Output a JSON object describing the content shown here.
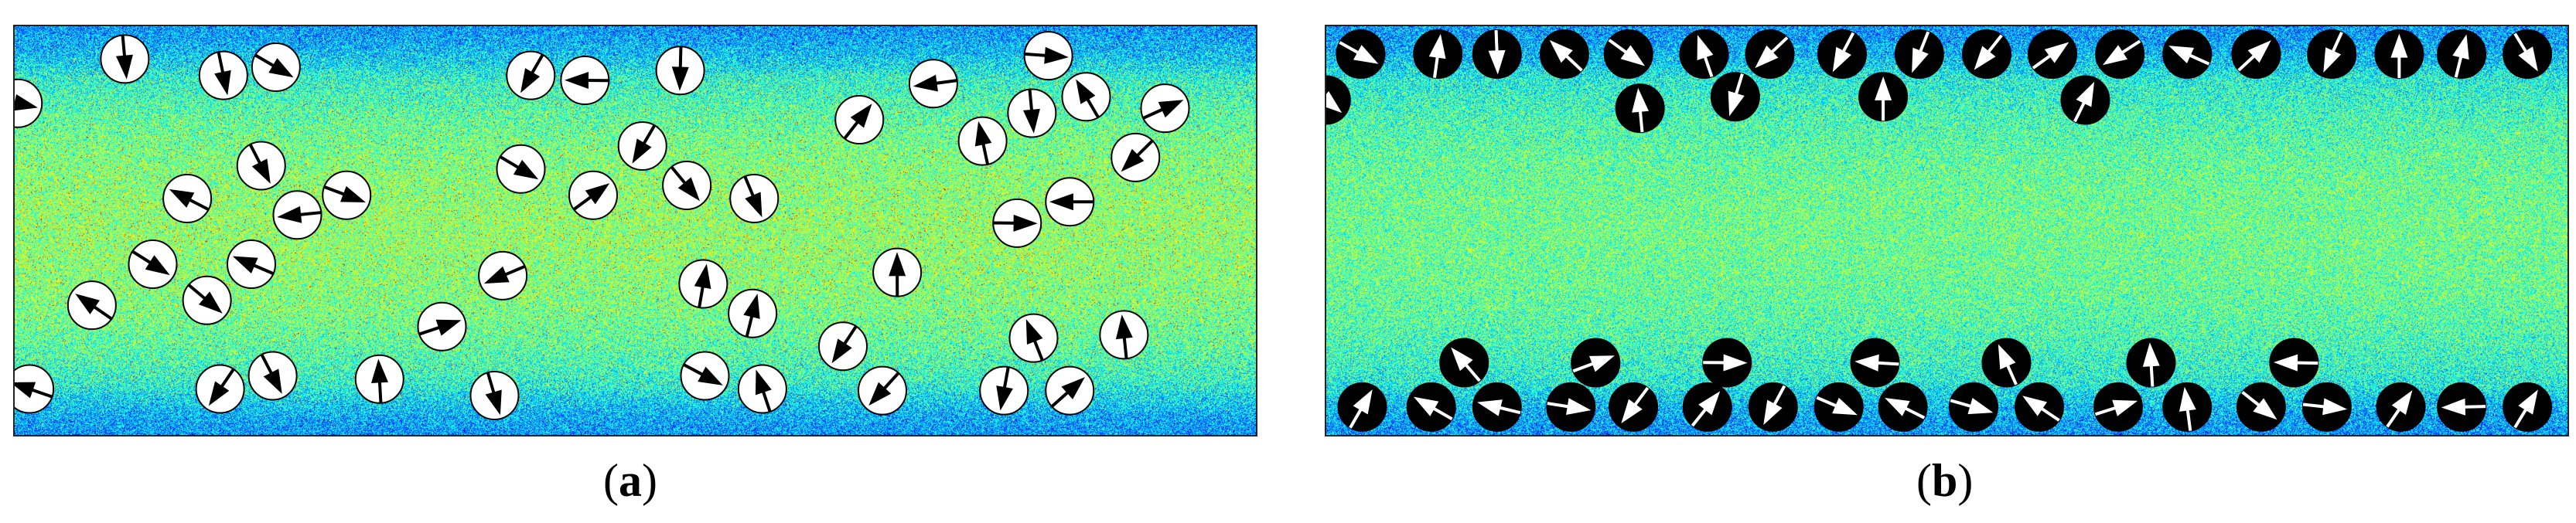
{
  "panels": [
    {
      "id": "a",
      "label_open": "(",
      "label_letter": "a",
      "label_close": ")",
      "particle_fill": "#ffffff",
      "arrow_color": "#000000"
    },
    {
      "id": "b",
      "label_open": "(",
      "label_letter": "b",
      "label_close": ")",
      "particle_fill": "#000000",
      "arrow_color": "#ffffff"
    }
  ],
  "colormap": "jet"
}
